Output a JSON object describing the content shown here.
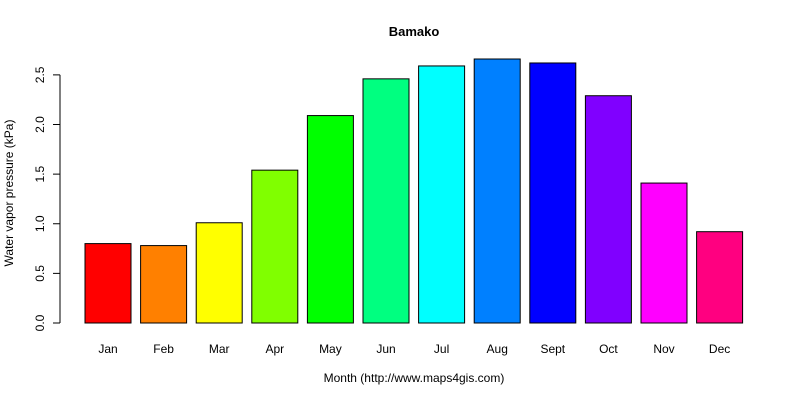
{
  "chart_data": {
    "type": "bar",
    "title": "Bamako",
    "xlabel": "Month (http://www.maps4gis.com)",
    "ylabel": "Water vapor pressure (kPa)",
    "categories": [
      "Jan",
      "Feb",
      "Mar",
      "Apr",
      "May",
      "Jun",
      "Jul",
      "Aug",
      "Sept",
      "Oct",
      "Nov",
      "Dec"
    ],
    "values": [
      0.8,
      0.78,
      1.01,
      1.54,
      2.09,
      2.46,
      2.59,
      2.66,
      2.62,
      2.29,
      1.41,
      0.92
    ],
    "colors": [
      "#ff0000",
      "#ff8000",
      "#ffff00",
      "#80ff00",
      "#00ff00",
      "#00ff80",
      "#00ffff",
      "#0080ff",
      "#0000ff",
      "#8000ff",
      "#ff00ff",
      "#ff0080"
    ],
    "yticks": [
      "0.0",
      "0.5",
      "1.0",
      "1.5",
      "2.0",
      "2.5"
    ],
    "ylim": [
      0,
      2.66
    ],
    "grid": false,
    "legend": "none"
  }
}
